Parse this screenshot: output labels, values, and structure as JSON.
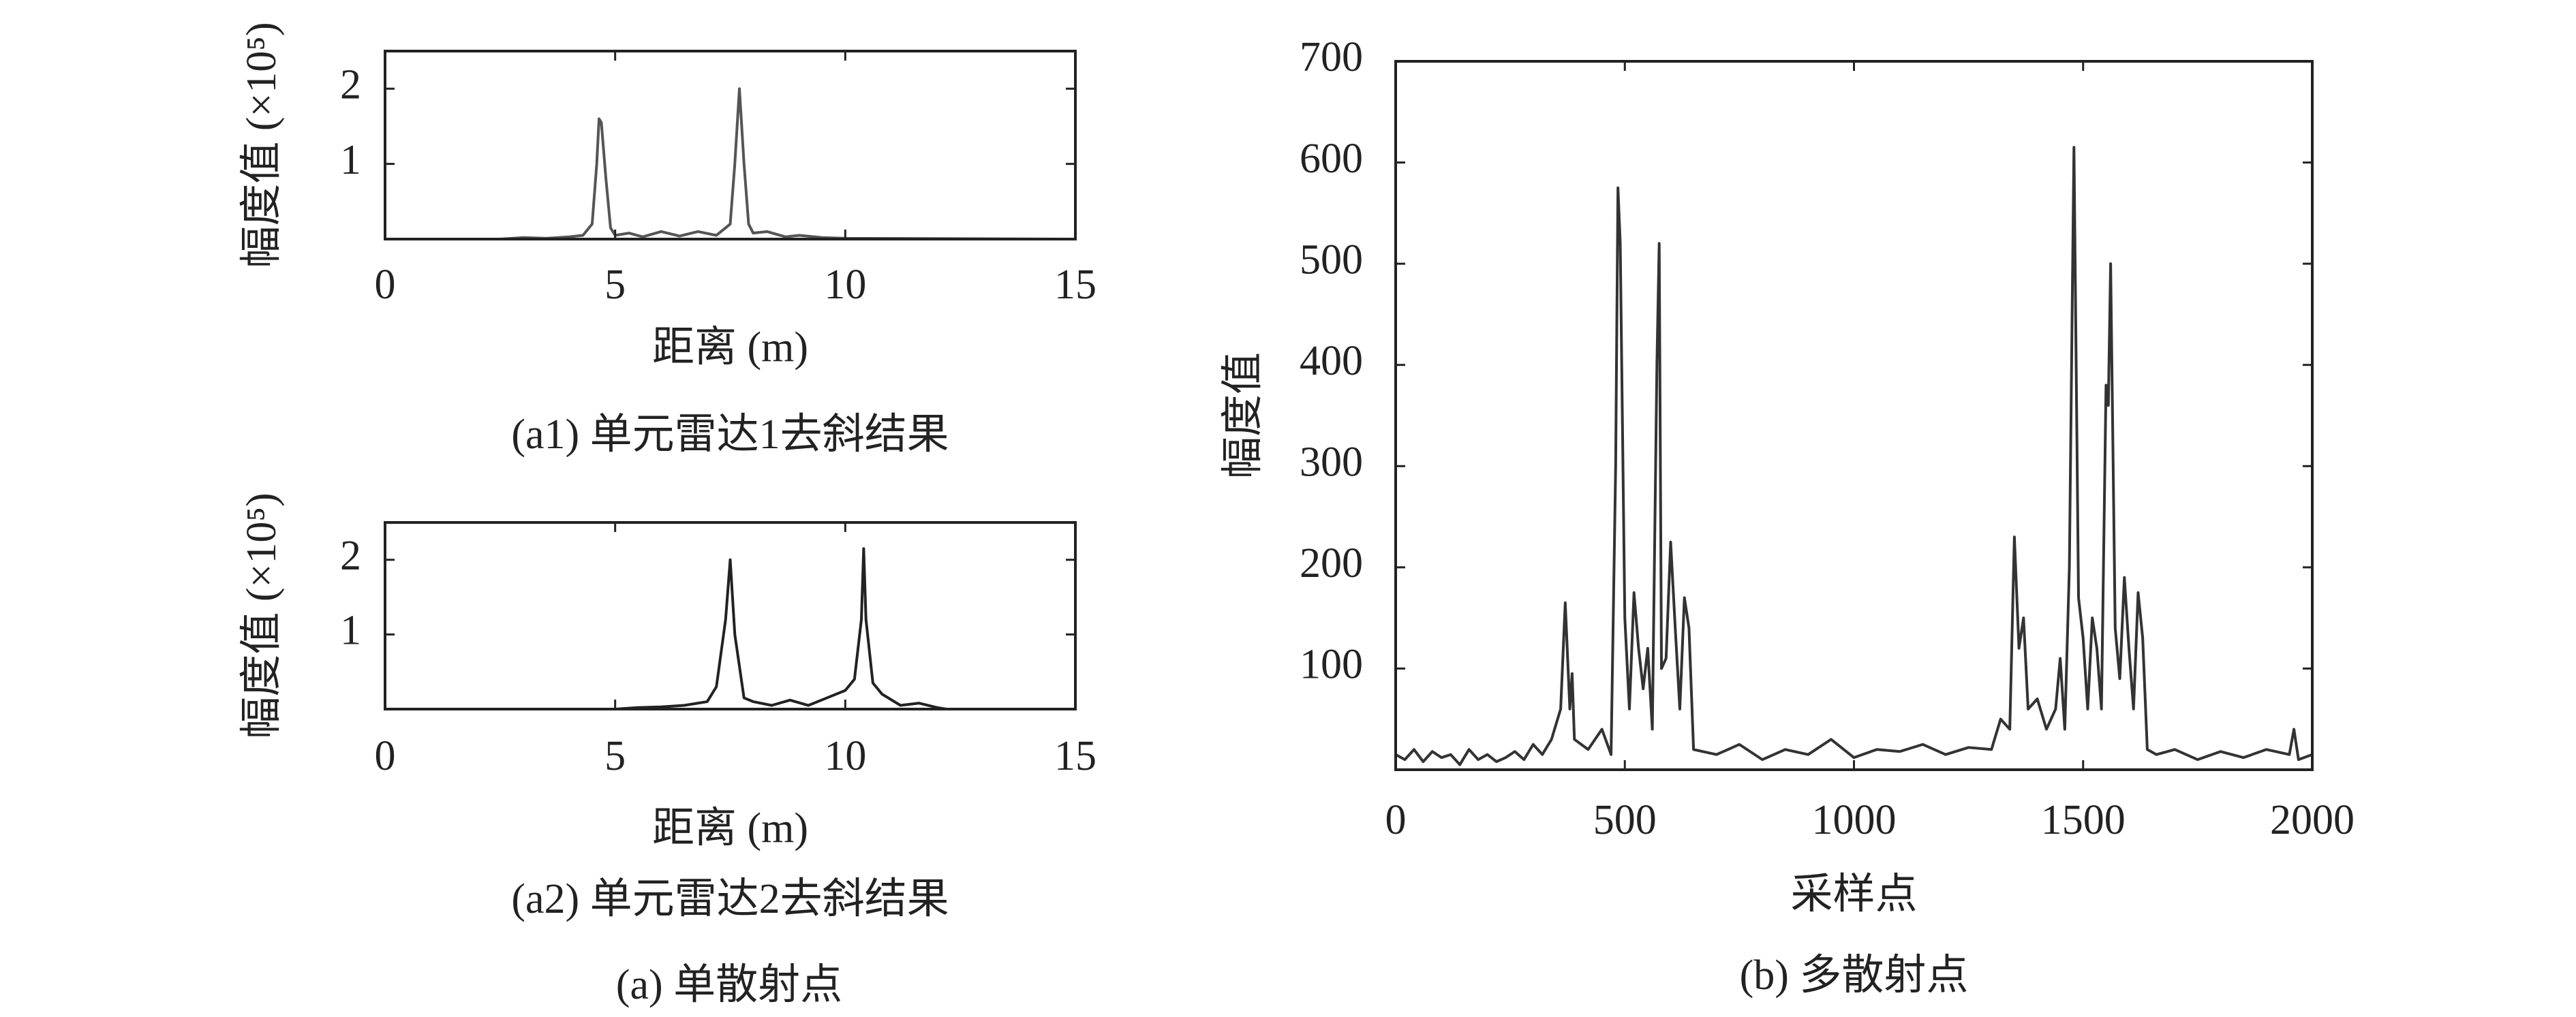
{
  "chart_data": [
    {
      "type": "line",
      "caption": "(a1) 单元雷达1去斜结果",
      "xlabel": "距离 (m)",
      "ylabel": "幅度值 (×10⁵)",
      "xlim": [
        0,
        15
      ],
      "ylim": [
        0,
        2.5
      ],
      "xticks": [
        0,
        5,
        10,
        15
      ],
      "yticks": [
        1,
        2
      ],
      "color": "#555555",
      "x": [
        2.5,
        3,
        3.5,
        4,
        4.3,
        4.5,
        4.6,
        4.65,
        4.7,
        4.8,
        4.9,
        5.0,
        5.3,
        5.6,
        6,
        6.4,
        6.8,
        7.2,
        7.5,
        7.6,
        7.7,
        7.8,
        7.9,
        8.0,
        8.3,
        8.7,
        9,
        9.5,
        10,
        15
      ],
      "values": [
        0,
        0.02,
        0.01,
        0.03,
        0.05,
        0.2,
        1.0,
        1.6,
        1.55,
        0.8,
        0.15,
        0.05,
        0.08,
        0.03,
        0.1,
        0.04,
        0.1,
        0.05,
        0.2,
        1.0,
        2.0,
        1.0,
        0.2,
        0.08,
        0.1,
        0.03,
        0.05,
        0.02,
        0.01,
        0
      ]
    },
    {
      "type": "line",
      "caption": "(a2) 单元雷达2去斜结果",
      "xlabel": "距离 (m)",
      "ylabel": "幅度值 (×10⁵)",
      "xlim": [
        0,
        15
      ],
      "ylim": [
        0,
        2.5
      ],
      "xticks": [
        0,
        5,
        10,
        15
      ],
      "yticks": [
        1,
        2
      ],
      "color": "#222222",
      "x": [
        5,
        5.5,
        6,
        6.5,
        7,
        7.2,
        7.4,
        7.5,
        7.6,
        7.8,
        8,
        8.4,
        8.8,
        9.2,
        9.6,
        10,
        10.2,
        10.35,
        10.4,
        10.45,
        10.6,
        10.8,
        11.2,
        11.6,
        12,
        12.2
      ],
      "values": [
        0,
        0.02,
        0.03,
        0.05,
        0.1,
        0.3,
        1.2,
        2.0,
        1.0,
        0.15,
        0.1,
        0.05,
        0.12,
        0.05,
        0.15,
        0.25,
        0.4,
        1.2,
        2.15,
        1.2,
        0.35,
        0.2,
        0.05,
        0.08,
        0.02,
        0
      ]
    },
    {
      "type": "line",
      "caption": "(b) 多散射点",
      "xlabel": "采样点",
      "ylabel": "幅度值",
      "xlim": [
        0,
        2000
      ],
      "ylim": [
        0,
        700
      ],
      "xticks": [
        0,
        500,
        1000,
        1500,
        2000
      ],
      "yticks": [
        100,
        200,
        300,
        400,
        500,
        600,
        700
      ],
      "color": "#333333",
      "x": [
        0,
        20,
        40,
        60,
        80,
        100,
        120,
        140,
        160,
        180,
        200,
        220,
        240,
        260,
        280,
        300,
        320,
        340,
        360,
        370,
        380,
        385,
        390,
        420,
        450,
        470,
        480,
        485,
        490,
        500,
        510,
        520,
        530,
        540,
        550,
        560,
        570,
        575,
        580,
        590,
        600,
        610,
        620,
        630,
        640,
        650,
        700,
        750,
        800,
        850,
        900,
        950,
        1000,
        1050,
        1100,
        1150,
        1200,
        1250,
        1300,
        1320,
        1340,
        1350,
        1360,
        1370,
        1380,
        1400,
        1420,
        1440,
        1450,
        1460,
        1470,
        1480,
        1490,
        1500,
        1510,
        1520,
        1530,
        1540,
        1550,
        1555,
        1560,
        1570,
        1580,
        1590,
        1600,
        1610,
        1620,
        1630,
        1640,
        1660,
        1700,
        1750,
        1800,
        1850,
        1900,
        1950,
        1960,
        1970,
        2000
      ],
      "values": [
        15,
        10,
        20,
        8,
        18,
        12,
        15,
        5,
        20,
        10,
        15,
        8,
        12,
        18,
        10,
        25,
        15,
        30,
        60,
        165,
        60,
        95,
        30,
        20,
        40,
        15,
        300,
        575,
        520,
        150,
        60,
        175,
        120,
        80,
        120,
        40,
        400,
        520,
        100,
        110,
        225,
        140,
        60,
        170,
        140,
        20,
        15,
        25,
        10,
        20,
        15,
        30,
        12,
        20,
        18,
        25,
        15,
        22,
        20,
        50,
        40,
        230,
        120,
        150,
        60,
        70,
        40,
        60,
        110,
        40,
        200,
        615,
        170,
        130,
        60,
        150,
        120,
        60,
        380,
        360,
        500,
        140,
        90,
        190,
        120,
        60,
        175,
        130,
        20,
        15,
        20,
        10,
        18,
        12,
        20,
        15,
        40,
        10,
        15
      ]
    }
  ],
  "group_caption": "(a) 单散射点"
}
